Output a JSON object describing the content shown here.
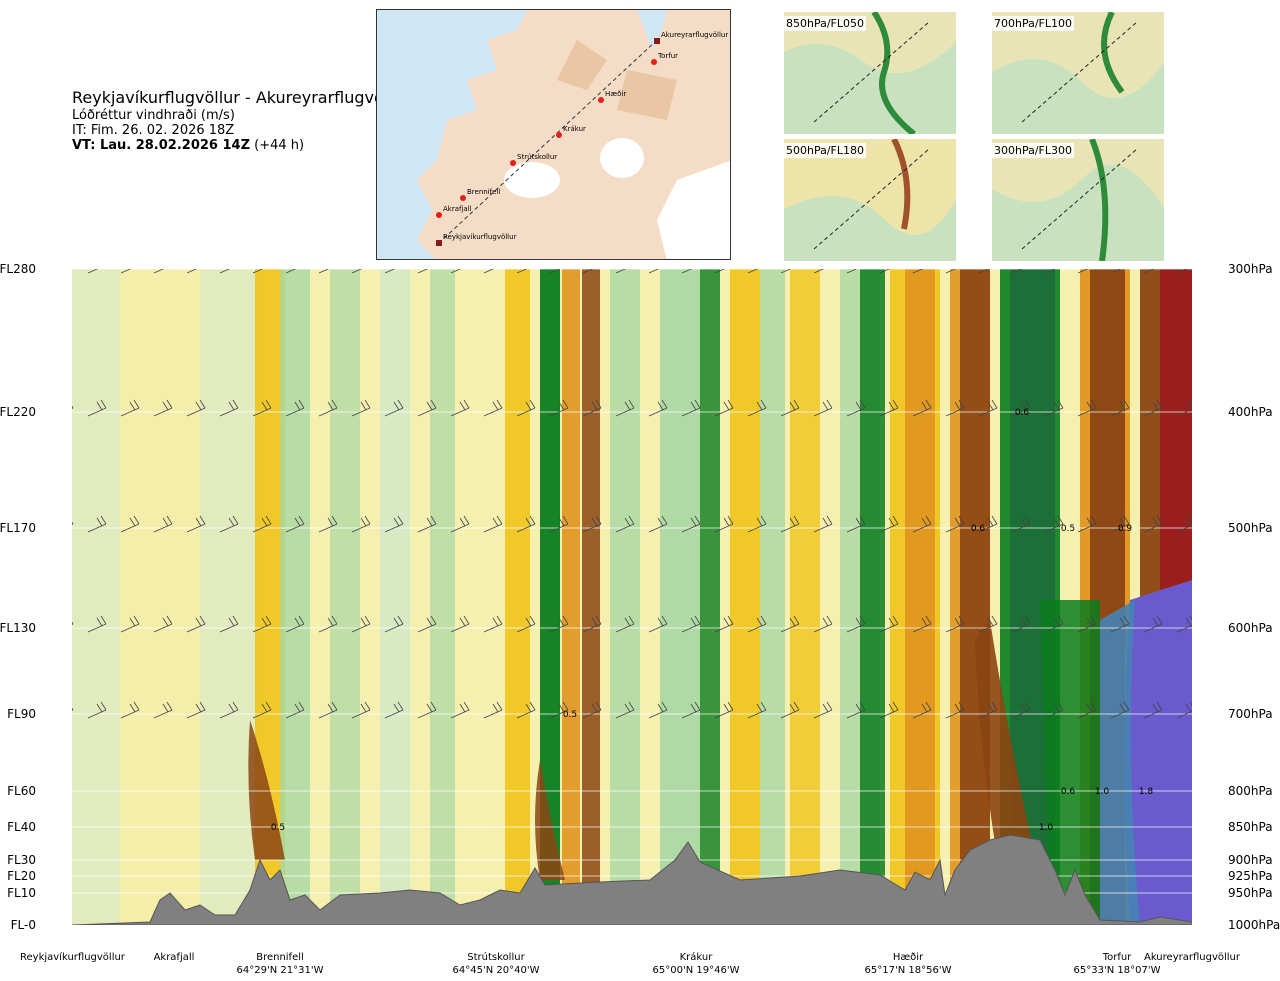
{
  "header": {
    "title": "Reykjavíkurflugvöllur - Akureyrarflugvöllur",
    "subtitle": "Lóðréttur vindhraði (m/s)",
    "init_time": "IT: Fim. 26. 02. 2026 18Z",
    "valid_label": "VT: Lau. 28.02.2026 14Z",
    "valid_offset": "(+44 h)"
  },
  "overview_map": {
    "route_points": [
      {
        "name": "Reykjavíkurflugvöllur"
      },
      {
        "name": "Akrafjall"
      },
      {
        "name": "Brennifell"
      },
      {
        "name": "Strútskollur"
      },
      {
        "name": "Krákur"
      },
      {
        "name": "Hæðir"
      },
      {
        "name": "Torfur"
      },
      {
        "name": "Akureyrarflugvöllur"
      }
    ]
  },
  "mini_maps": [
    {
      "label": "850hPa/FL050"
    },
    {
      "label": "700hPa/FL100"
    },
    {
      "label": "500hPa/FL180"
    },
    {
      "label": "300hPa/FL300"
    }
  ],
  "chart_data": {
    "type": "heatmap",
    "title": "Lóðréttur vindhraði (m/s)",
    "x_axis": "distance along route",
    "left_axis_levels": [
      "FL280",
      "FL220",
      "FL170",
      "FL130",
      "FL90",
      "FL60",
      "FL40",
      "FL30",
      "FL20",
      "FL10",
      "FL-0"
    ],
    "right_axis_levels": [
      "300hPa",
      "400hPa",
      "500hPa",
      "600hPa",
      "700hPa",
      "800hPa",
      "850hPa",
      "900hPa",
      "925hPa",
      "950hPa",
      "1000hPa"
    ],
    "waypoints": [
      {
        "name": "Reykjavíkurflugvöllur",
        "coord": ""
      },
      {
        "name": "Akrafjall",
        "coord": ""
      },
      {
        "name": "Brennifell",
        "coord": "64°29'N 21°31'W"
      },
      {
        "name": "Strútskollur",
        "coord": "64°45'N 20°40'W"
      },
      {
        "name": "Krákur",
        "coord": "65°00'N 19°46'W"
      },
      {
        "name": "Hæðir",
        "coord": "65°17'N 18°56'W"
      },
      {
        "name": "Torfur",
        "coord": "65°33'N 18°07'W"
      },
      {
        "name": "Akureyrarflugvöllur",
        "coord": ""
      }
    ],
    "contour_labels": [
      {
        "text": "0.5"
      },
      {
        "text": "0.5"
      },
      {
        "text": "0.6"
      },
      {
        "text": "0.6"
      },
      {
        "text": "0.5"
      },
      {
        "text": "0.9"
      },
      {
        "text": "0.6"
      },
      {
        "text": "1.0"
      },
      {
        "text": "1.8"
      },
      {
        "text": "1.0"
      }
    ],
    "colors": {
      "neg_strong": "#6a5acd",
      "neg_mid": "#4682b4",
      "neg_dark_green": "#1b6b3a",
      "green": "#0a7d1f",
      "light_green": "#a9d7a4",
      "pale_green": "#cfe8c9",
      "pale_yellow": "#f4eeaa",
      "yellow": "#f0c419",
      "orange": "#e0931f",
      "brown": "#8b4513",
      "dark_red": "#9b1b1b",
      "terrain": "#808080"
    }
  }
}
